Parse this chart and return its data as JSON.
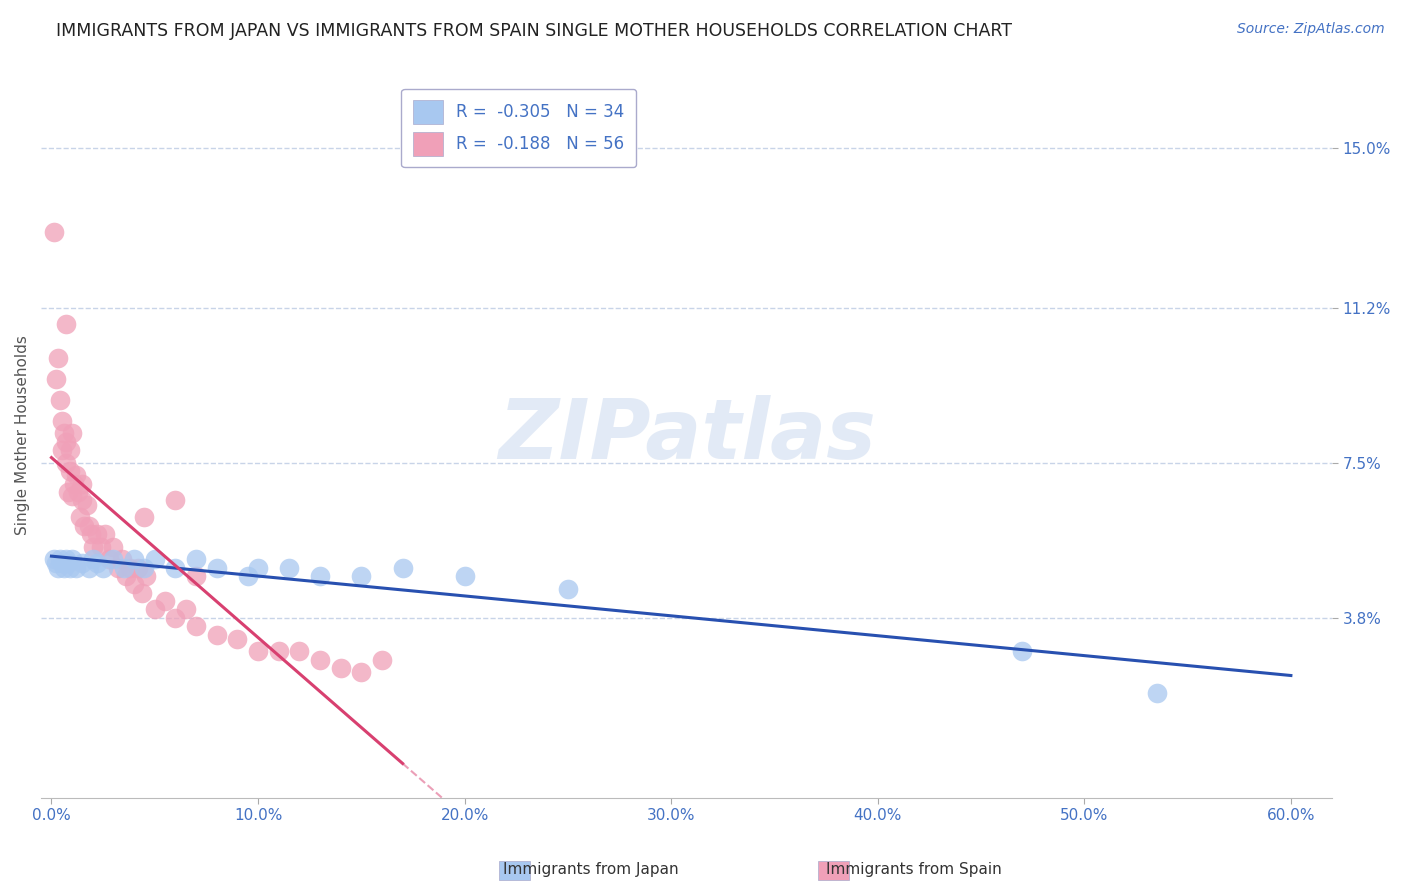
{
  "title": "IMMIGRANTS FROM JAPAN VS IMMIGRANTS FROM SPAIN SINGLE MOTHER HOUSEHOLDS CORRELATION CHART",
  "source": "Source: ZipAtlas.com",
  "ylabel": "Single Mother Households",
  "xlim": [
    -0.005,
    0.62
  ],
  "ylim": [
    -0.005,
    0.168
  ],
  "ytick_vals": [
    0.038,
    0.075,
    0.112,
    0.15
  ],
  "ytick_labels": [
    "3.8%",
    "7.5%",
    "11.2%",
    "15.0%"
  ],
  "xtick_vals": [
    0.0,
    0.1,
    0.2,
    0.3,
    0.4,
    0.5,
    0.6
  ],
  "xtick_labels": [
    "0.0%",
    "10.0%",
    "20.0%",
    "30.0%",
    "40.0%",
    "50.0%",
    "60.0%"
  ],
  "japan_R": -0.305,
  "japan_N": 34,
  "spain_R": -0.188,
  "spain_N": 56,
  "japan_color": "#a8c8f0",
  "spain_color": "#f0a0b8",
  "japan_line_color": "#2850b0",
  "spain_line_color": "#d84070",
  "japan_x": [
    0.001,
    0.002,
    0.003,
    0.004,
    0.005,
    0.006,
    0.007,
    0.008,
    0.009,
    0.01,
    0.012,
    0.015,
    0.018,
    0.02,
    0.022,
    0.025,
    0.03,
    0.035,
    0.04,
    0.045,
    0.05,
    0.06,
    0.07,
    0.08,
    0.095,
    0.1,
    0.115,
    0.13,
    0.15,
    0.17,
    0.2,
    0.25,
    0.47,
    0.535
  ],
  "japan_y": [
    0.052,
    0.051,
    0.05,
    0.052,
    0.051,
    0.05,
    0.052,
    0.051,
    0.05,
    0.052,
    0.05,
    0.051,
    0.05,
    0.052,
    0.051,
    0.05,
    0.052,
    0.05,
    0.052,
    0.05,
    0.052,
    0.05,
    0.052,
    0.05,
    0.048,
    0.05,
    0.05,
    0.048,
    0.048,
    0.05,
    0.048,
    0.045,
    0.03,
    0.02
  ],
  "spain_x": [
    0.001,
    0.002,
    0.003,
    0.004,
    0.005,
    0.005,
    0.006,
    0.007,
    0.007,
    0.008,
    0.009,
    0.009,
    0.01,
    0.011,
    0.012,
    0.013,
    0.014,
    0.015,
    0.016,
    0.017,
    0.018,
    0.019,
    0.02,
    0.022,
    0.024,
    0.026,
    0.028,
    0.03,
    0.032,
    0.034,
    0.036,
    0.038,
    0.04,
    0.042,
    0.044,
    0.046,
    0.05,
    0.055,
    0.06,
    0.065,
    0.07,
    0.08,
    0.09,
    0.1,
    0.11,
    0.12,
    0.13,
    0.14,
    0.15,
    0.16,
    0.007,
    0.01,
    0.015,
    0.045,
    0.06,
    0.07
  ],
  "spain_y": [
    0.13,
    0.095,
    0.1,
    0.09,
    0.085,
    0.078,
    0.082,
    0.075,
    0.08,
    0.068,
    0.073,
    0.078,
    0.067,
    0.07,
    0.072,
    0.068,
    0.062,
    0.066,
    0.06,
    0.065,
    0.06,
    0.058,
    0.055,
    0.058,
    0.055,
    0.058,
    0.052,
    0.055,
    0.05,
    0.052,
    0.048,
    0.05,
    0.046,
    0.05,
    0.044,
    0.048,
    0.04,
    0.042,
    0.038,
    0.04,
    0.036,
    0.034,
    0.033,
    0.03,
    0.03,
    0.03,
    0.028,
    0.026,
    0.025,
    0.028,
    0.108,
    0.082,
    0.07,
    0.062,
    0.066,
    0.048
  ],
  "watermark_text": "ZIPatlas",
  "background_color": "#ffffff",
  "grid_color": "#c8d4e8",
  "title_fontsize": 12.5,
  "label_fontsize": 11,
  "tick_fontsize": 11,
  "legend_fontsize": 12
}
